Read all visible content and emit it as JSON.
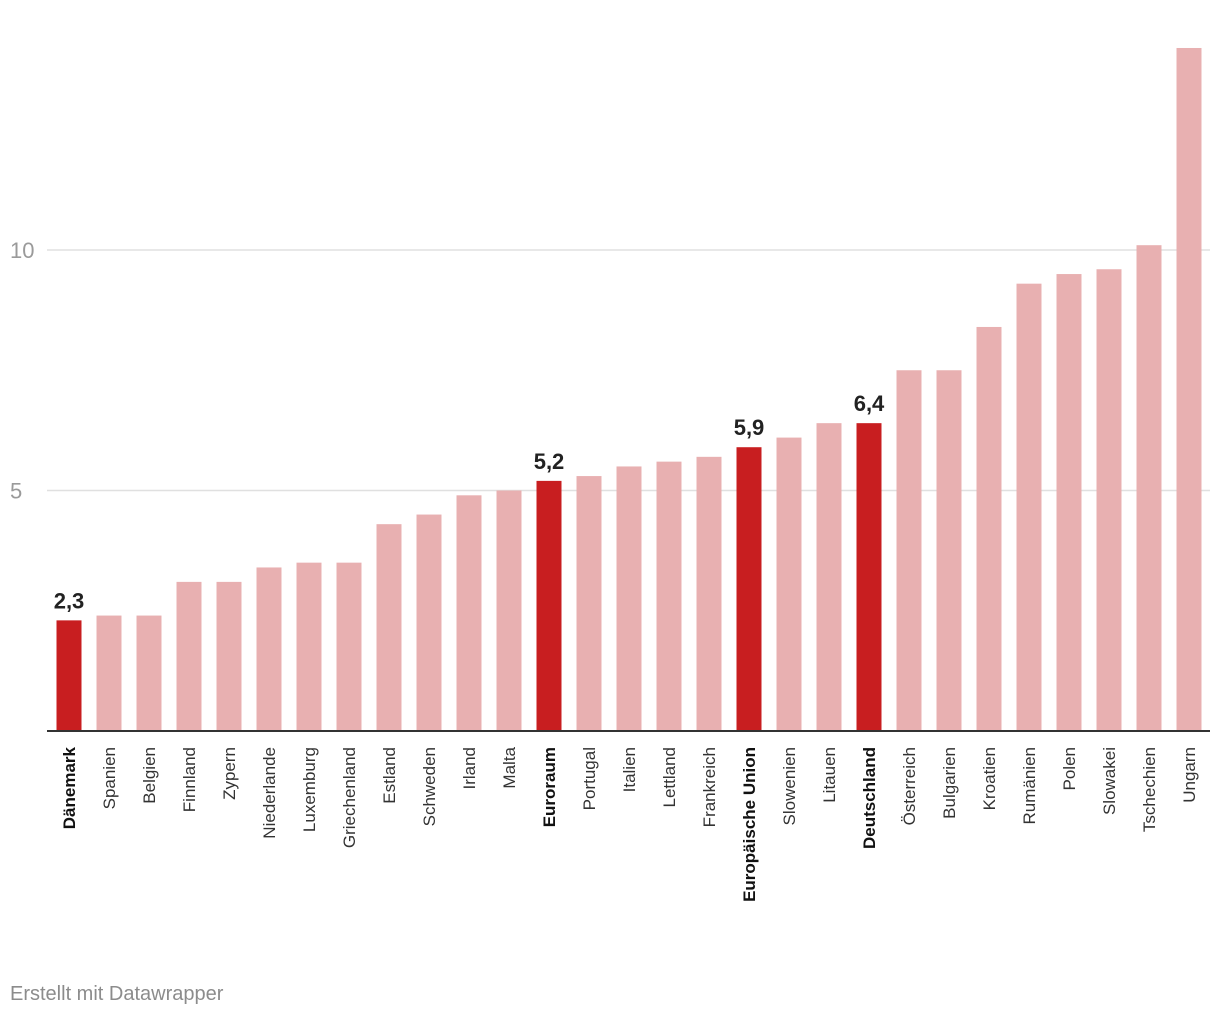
{
  "footer": {
    "credit": "Erstellt mit Datawrapper"
  },
  "colors": {
    "bar_default": "#e8b0b1",
    "bar_highlight": "#c81e20",
    "gridline": "#e0e0e0",
    "axis": "#333333"
  },
  "chart_data": {
    "type": "bar",
    "title": "",
    "xlabel": "",
    "ylabel": "",
    "ylim": [
      0,
      14
    ],
    "yticks": [
      5,
      10
    ],
    "ytick_labels": [
      "5",
      "10"
    ],
    "grid": true,
    "categories": [
      "Dänemark",
      "Spanien",
      "Belgien",
      "Finnland",
      "Zypern",
      "Niederlande",
      "Luxemburg",
      "Griechenland",
      "Estland",
      "Schweden",
      "Irland",
      "Malta",
      "Euroraum",
      "Portugal",
      "Italien",
      "Lettland",
      "Frankreich",
      "Europäische Union",
      "Slowenien",
      "Litauen",
      "Deutschland",
      "Österreich",
      "Bulgarien",
      "Kroatien",
      "Rumänien",
      "Polen",
      "Slowakei",
      "Tschechien",
      "Ungarn"
    ],
    "values": [
      2.3,
      2.4,
      2.4,
      3.1,
      3.1,
      3.4,
      3.5,
      3.5,
      4.3,
      4.5,
      4.9,
      5.0,
      5.2,
      5.3,
      5.5,
      5.6,
      5.7,
      5.9,
      6.1,
      6.4,
      6.4,
      7.5,
      7.5,
      8.4,
      9.3,
      9.5,
      9.6,
      10.1,
      14.2
    ],
    "highlighted": [
      "Dänemark",
      "Euroraum",
      "Europäische Union",
      "Deutschland"
    ],
    "data_labels": {
      "Dänemark": "2,3",
      "Euroraum": "5,2",
      "Europäische Union": "5,9",
      "Deutschland": "6,4"
    }
  }
}
